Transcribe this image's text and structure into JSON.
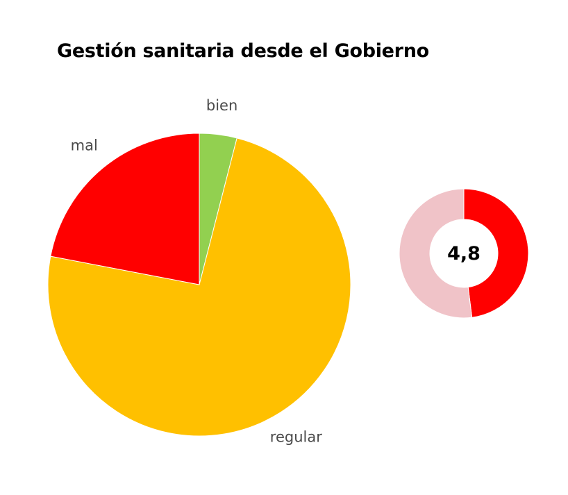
{
  "chart_data": [
    {
      "type": "pie",
      "title": "Gestión sanitaria desde el Gobierno",
      "slices": [
        {
          "label": "bien",
          "value": 4,
          "color": "#92d050"
        },
        {
          "label": "regular",
          "value": 74,
          "color": "#ffc000"
        },
        {
          "label": "mal",
          "value": 22,
          "color": "#ff0000"
        }
      ]
    },
    {
      "type": "donut",
      "center_label": "4,8",
      "value": 4.8,
      "max": 10,
      "colors": {
        "filled": "#ff0000",
        "remainder": "#f0c3c8"
      }
    }
  ]
}
